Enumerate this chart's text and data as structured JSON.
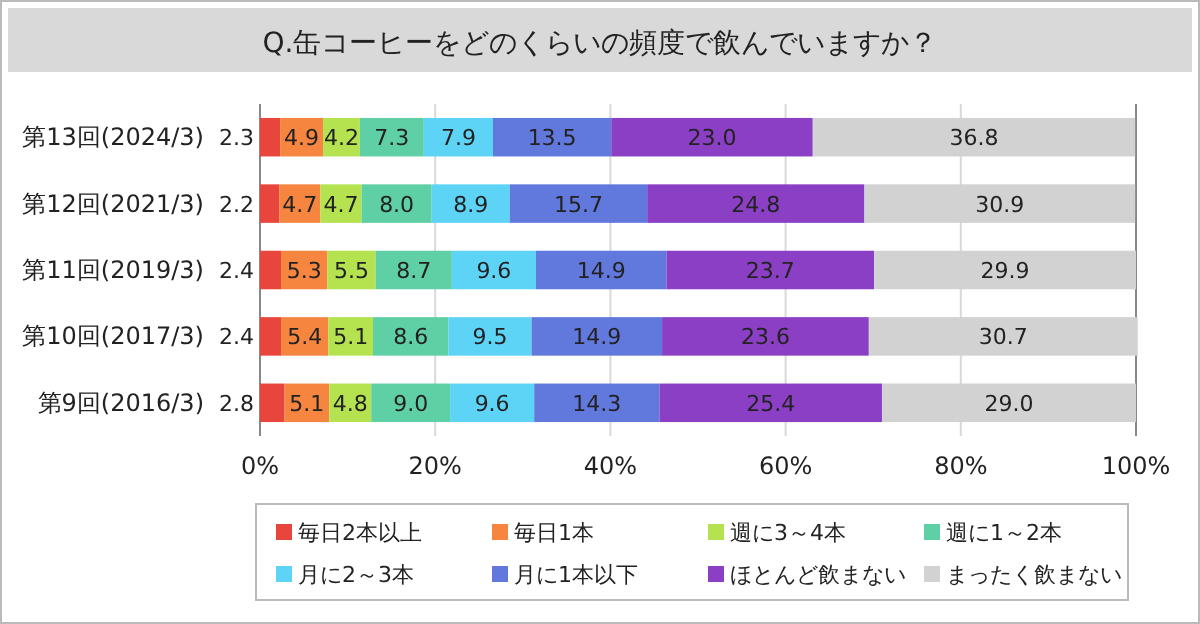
{
  "chart_data": {
    "type": "bar",
    "orientation": "horizontal",
    "stacked": true,
    "title": "Q.缶コーヒーをどのくらいの頻度で飲んでいますか？",
    "categories": [
      "第13回(2024/3)",
      "第12回(2021/3)",
      "第11回(2019/3)",
      "第10回(2017/3)",
      "第9回(2016/3)"
    ],
    "series": [
      {
        "name": "毎日2本以上",
        "color": "#e8453c",
        "values": [
          2.3,
          2.2,
          2.4,
          2.4,
          2.8
        ],
        "value_labels": [
          "2.3",
          "2.2",
          "2.4",
          "2.4",
          "2.8"
        ]
      },
      {
        "name": "毎日1本",
        "color": "#f5853f",
        "values": [
          4.9,
          4.7,
          5.3,
          5.4,
          5.1
        ],
        "value_labels": [
          "4.9",
          "4.7",
          "5.3",
          "5.4",
          "5.1"
        ]
      },
      {
        "name": "週に3～4本",
        "color": "#b4e34f",
        "values": [
          4.2,
          4.7,
          5.5,
          5.1,
          4.8
        ],
        "value_labels": [
          "4.2",
          "4.7",
          "5.5",
          "5.1",
          "4.8"
        ]
      },
      {
        "name": "週に1～2本",
        "color": "#5fcfa5",
        "values": [
          7.3,
          8.0,
          8.7,
          8.6,
          9.0
        ],
        "value_labels": [
          "7.3",
          "8.0",
          "8.7",
          "8.6",
          "9.0"
        ]
      },
      {
        "name": "月に2～3本",
        "color": "#5dd3f5",
        "values": [
          7.9,
          8.9,
          9.6,
          9.5,
          9.6
        ],
        "value_labels": [
          "7.9",
          "8.9",
          "9.6",
          "9.5",
          "9.6"
        ]
      },
      {
        "name": "月に1本以下",
        "color": "#6178dc",
        "values": [
          13.5,
          15.7,
          14.9,
          14.9,
          14.3
        ],
        "value_labels": [
          "13.5",
          "15.7",
          "14.9",
          "14.9",
          "14.3"
        ]
      },
      {
        "name": "ほとんど飲まない",
        "color": "#8a3fc4",
        "values": [
          23.0,
          24.8,
          23.7,
          23.6,
          25.4
        ],
        "value_labels": [
          "23.0",
          "24.8",
          "23.7",
          "23.6",
          "25.4"
        ]
      },
      {
        "name": "まったく飲まない",
        "color": "#d2d2d2",
        "values": [
          36.8,
          30.9,
          29.9,
          30.7,
          29.0
        ],
        "value_labels": [
          "36.8",
          "30.9",
          "29.9",
          "30.7",
          "29.0"
        ]
      }
    ],
    "xlim": [
      0,
      100
    ],
    "xticks": [
      {
        "value": 0,
        "label": "0%"
      },
      {
        "value": 20,
        "label": "20%"
      },
      {
        "value": 40,
        "label": "40%"
      },
      {
        "value": 60,
        "label": "60%"
      },
      {
        "value": 80,
        "label": "80%"
      },
      {
        "value": 100,
        "label": "100%"
      }
    ],
    "grid": "x",
    "legend": "bottom"
  }
}
